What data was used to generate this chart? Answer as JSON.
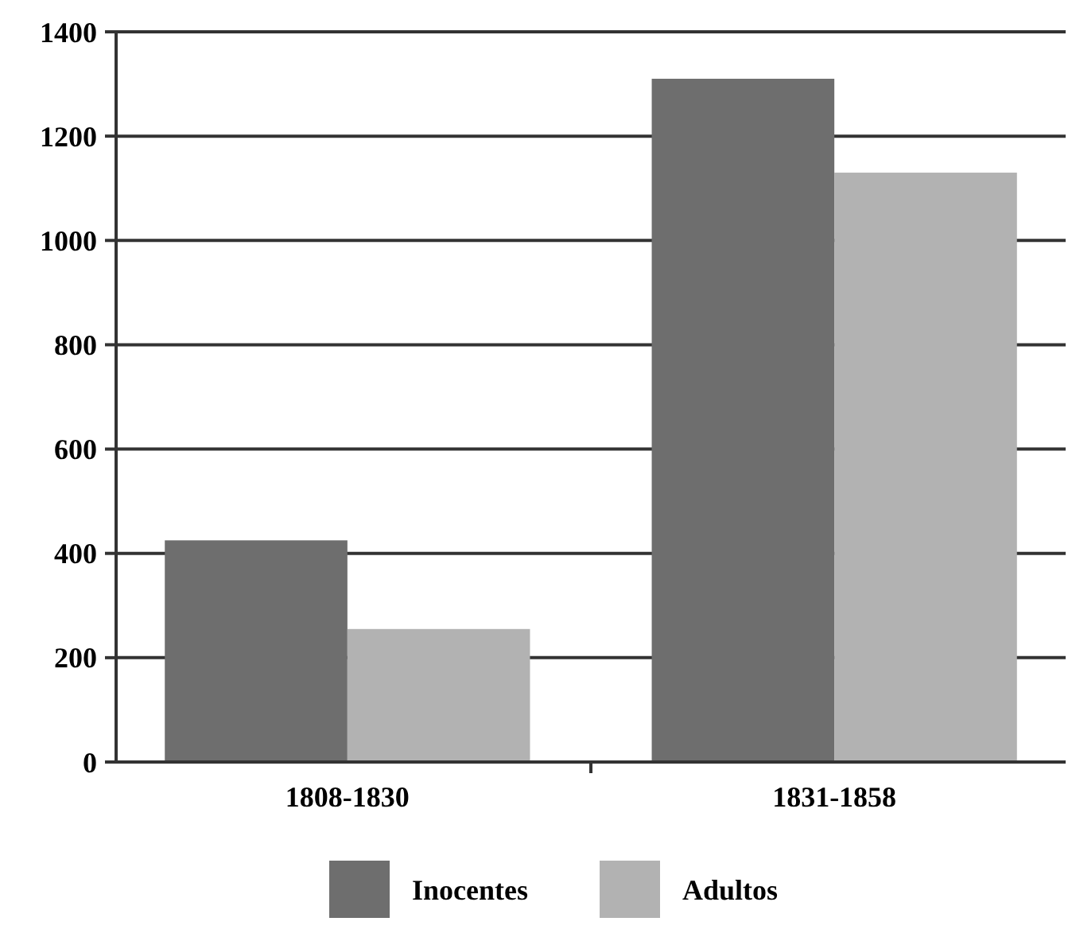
{
  "chart_data": {
    "type": "bar",
    "categories": [
      "1808-1830",
      "1831-1858"
    ],
    "series": [
      {
        "name": "Inocentes",
        "color": "#6e6e6e",
        "values": [
          425,
          1310
        ]
      },
      {
        "name": "Adultos",
        "color": "#b2b2b2",
        "values": [
          255,
          1130
        ]
      }
    ],
    "ylim": [
      0,
      1400
    ],
    "yticks": [
      0,
      200,
      400,
      600,
      800,
      1000,
      1200,
      1400
    ],
    "grid": "y",
    "legend": "bottom"
  }
}
